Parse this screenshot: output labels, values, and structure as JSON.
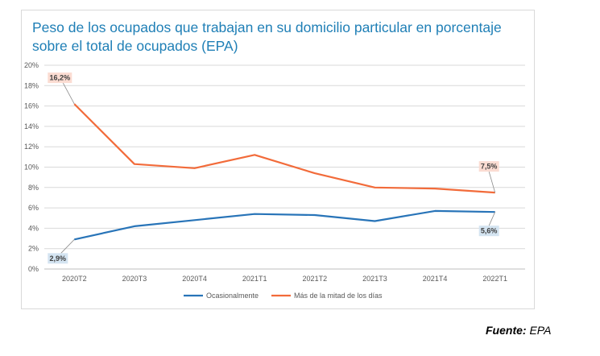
{
  "chart_data": {
    "type": "line",
    "title": "Peso de los ocupados que trabajan en su domicilio particular en porcentaje sobre el total de ocupados (EPA)",
    "categories": [
      "2020T2",
      "2020T3",
      "2020T4",
      "2021T1",
      "2021T2",
      "2021T3",
      "2021T4",
      "2022T1"
    ],
    "ylim": [
      0,
      20
    ],
    "yticks": [
      0,
      2,
      4,
      6,
      8,
      10,
      12,
      14,
      16,
      18,
      20
    ],
    "ytick_labels": [
      "0%",
      "2%",
      "4%",
      "6%",
      "8%",
      "10%",
      "12%",
      "14%",
      "16%",
      "18%",
      "20%"
    ],
    "grid": true,
    "legend_position": "bottom",
    "series": [
      {
        "name": "Ocasionalmente",
        "color": "#2874b8",
        "values": [
          2.9,
          4.2,
          4.8,
          5.4,
          5.3,
          4.7,
          5.7,
          5.6
        ]
      },
      {
        "name": "Más de la mitad de los días",
        "color": "#f26b3a",
        "values": [
          16.2,
          10.3,
          9.9,
          11.2,
          9.4,
          8.0,
          7.9,
          7.5
        ]
      }
    ],
    "data_labels": [
      {
        "series": 1,
        "index": 0,
        "text": "16,2%",
        "fill": "#fbdcd2"
      },
      {
        "series": 1,
        "index": 7,
        "text": "7,5%",
        "fill": "#fbdcd2"
      },
      {
        "series": 0,
        "index": 0,
        "text": "2,9%",
        "fill": "#d4e4f1"
      },
      {
        "series": 0,
        "index": 7,
        "text": "5,6%",
        "fill": "#d4e4f1"
      }
    ]
  },
  "source": {
    "label": "Fuente",
    "value": "EPA"
  }
}
